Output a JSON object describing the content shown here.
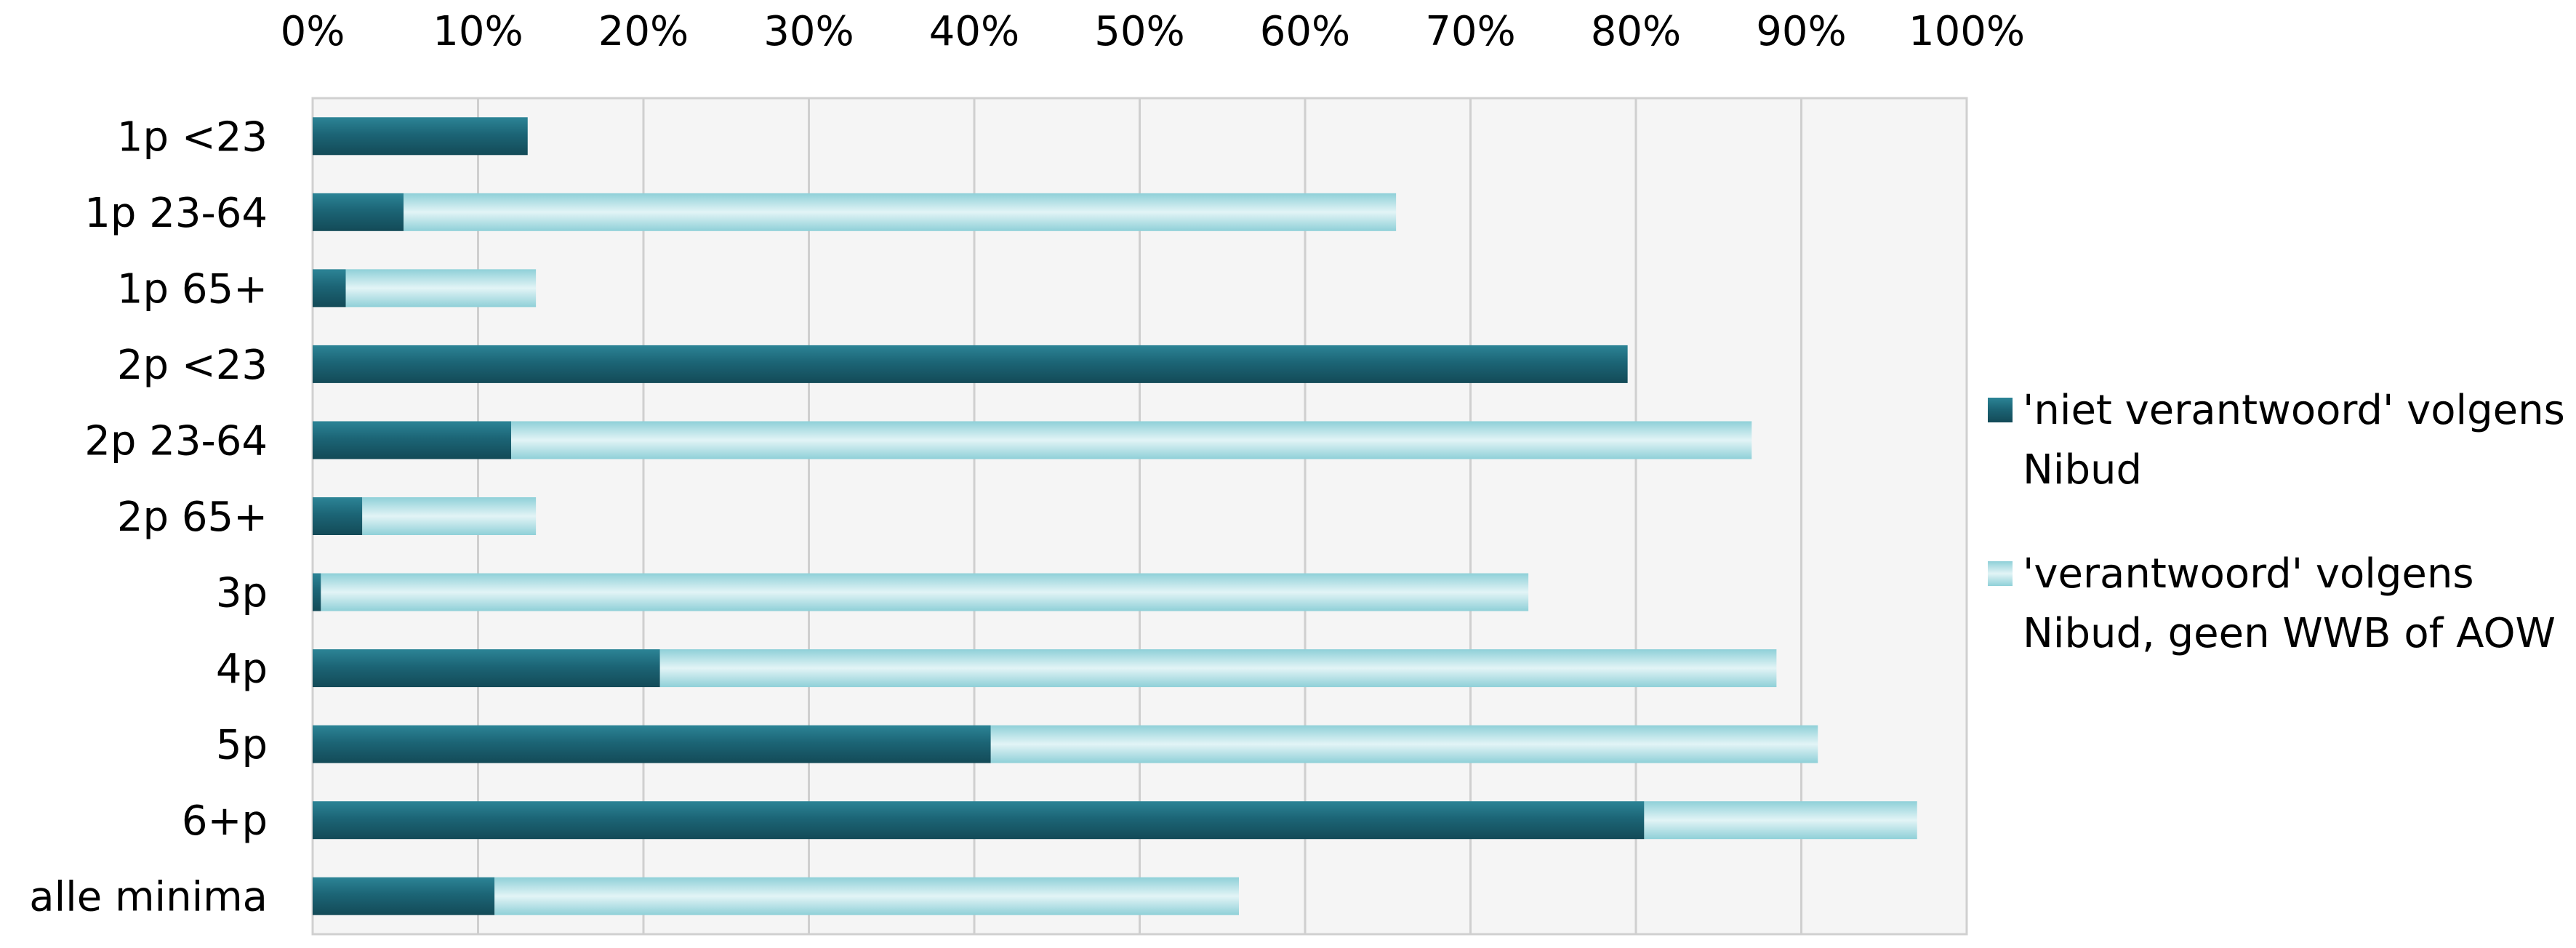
{
  "chart_data": {
    "type": "bar",
    "orientation": "horizontal",
    "stacked": true,
    "categories": [
      "1p <23",
      "1p 23-64",
      "1p 65+",
      "2p <23",
      "2p 23-64",
      "2p 65+",
      "3p",
      "4p",
      "5p",
      "6+p",
      "alle minima"
    ],
    "series": [
      {
        "name": "'niet verantwoord' volgens Nibud",
        "color": "#1c6576",
        "values": [
          13,
          5.5,
          2,
          79.5,
          12,
          3,
          0.5,
          21,
          41,
          80.5,
          11
        ]
      },
      {
        "name": "'verantwoord' volgens Nibud, geen WWB of AOW",
        "color": "#a6dde3",
        "values": [
          0,
          60,
          11.5,
          0,
          75,
          10.5,
          73,
          67.5,
          50,
          16.5,
          45
        ]
      }
    ],
    "x_ticks": [
      "0%",
      "10%",
      "20%",
      "30%",
      "40%",
      "50%",
      "60%",
      "70%",
      "80%",
      "90%",
      "100%"
    ],
    "xlim": [
      0,
      100
    ],
    "title": "",
    "xlabel": "",
    "ylabel": "",
    "grid": "vertical",
    "legend_position": "right",
    "background": "#f5f5f5"
  }
}
